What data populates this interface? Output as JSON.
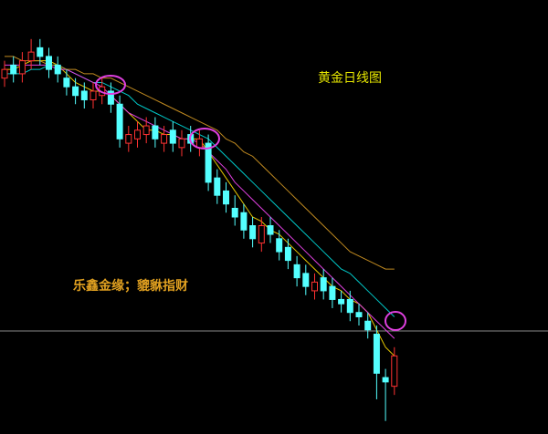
{
  "chart_data": {
    "type": "candlestick",
    "title": "黄金日线图",
    "annotation": "乐鑫金缘；貔貅指财",
    "ylim": [
      0,
      100
    ],
    "up_color": "#ff3232",
    "down_color": "#54ffff",
    "open": [
      82,
      85,
      83,
      86,
      89,
      87,
      85,
      82,
      80,
      79,
      77,
      78,
      79,
      76,
      67,
      68,
      69,
      71,
      67,
      70,
      66,
      69,
      66,
      67,
      59,
      56,
      52,
      51,
      48,
      44,
      48,
      45,
      43,
      39,
      37,
      33,
      36,
      34,
      31,
      31,
      28,
      26,
      23,
      13,
      11
    ],
    "high": [
      86,
      87,
      88,
      91,
      91,
      89,
      87,
      84,
      82,
      81,
      81,
      82,
      81,
      78,
      71,
      72,
      73,
      73,
      71,
      72,
      70,
      71,
      70,
      69,
      61,
      58,
      55,
      53,
      50,
      50,
      50,
      47,
      45,
      41,
      39,
      37,
      38,
      36,
      33,
      33,
      30,
      28,
      25,
      15,
      20
    ],
    "low": [
      80,
      81,
      81,
      84,
      85,
      82,
      81,
      78,
      76,
      75,
      75,
      76,
      74,
      66,
      65,
      66,
      67,
      66,
      65,
      65,
      64,
      65,
      64,
      56,
      53,
      51,
      48,
      45,
      43,
      42,
      44,
      40,
      38,
      34,
      32,
      31,
      31,
      29,
      28,
      26,
      25,
      22,
      8,
      3,
      9
    ],
    "close": [
      84,
      83,
      86,
      88,
      87,
      84,
      83,
      80,
      78,
      77,
      79,
      80,
      76,
      68,
      69,
      70,
      71,
      68,
      69,
      67,
      68,
      67,
      68,
      58,
      55,
      53,
      50,
      47,
      45,
      48,
      46,
      42,
      40,
      36,
      34,
      35,
      33,
      31,
      30,
      28,
      27,
      24,
      14,
      12,
      18
    ],
    "lines": [
      {
        "color": "#e6c700",
        "values": [
          84,
          84,
          85,
          86,
          86,
          86,
          85,
          83,
          81,
          80,
          79,
          79,
          78,
          76,
          74,
          72,
          70,
          70,
          69,
          69,
          68,
          68,
          68,
          65,
          62,
          59,
          56,
          53,
          50,
          49,
          47,
          46,
          44,
          42,
          40,
          38,
          36,
          34,
          33,
          31,
          30,
          28,
          24,
          20,
          18
        ]
      },
      {
        "color": "#00c8c8",
        "values": [
          83,
          83,
          83,
          84,
          84,
          85,
          85,
          84,
          83,
          82,
          81,
          81,
          80,
          79,
          78,
          76,
          75,
          74,
          73,
          72,
          71,
          70,
          69,
          68,
          66,
          64,
          62,
          60,
          58,
          56,
          54,
          52,
          50,
          48,
          46,
          44,
          42,
          40,
          38,
          37,
          35,
          33,
          31,
          29,
          27
        ]
      },
      {
        "color": "#e040e0",
        "values": [
          85,
          85,
          85,
          85,
          85,
          85,
          84,
          84,
          83,
          82,
          81,
          80,
          78,
          76,
          74,
          73,
          72,
          71,
          70,
          69,
          68,
          68,
          67,
          65,
          63,
          61,
          58,
          56,
          54,
          52,
          50,
          48,
          46,
          44,
          42,
          40,
          38,
          36,
          34,
          32,
          30,
          28,
          26,
          24,
          22
        ]
      },
      {
        "color": "#c08a20",
        "values": [
          87,
          87,
          86,
          86,
          86,
          85,
          85,
          84,
          84,
          83,
          83,
          82,
          82,
          81,
          80,
          79,
          78,
          77,
          76,
          75,
          74,
          73,
          72,
          71,
          70,
          68,
          67,
          65,
          64,
          62,
          60,
          58,
          56,
          54,
          52,
          50,
          48,
          46,
          44,
          42,
          41,
          40,
          39,
          38,
          38
        ]
      }
    ]
  }
}
